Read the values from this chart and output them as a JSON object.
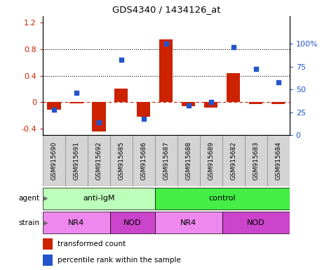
{
  "title": "GDS4340 / 1434126_at",
  "samples": [
    "GSM915690",
    "GSM915691",
    "GSM915692",
    "GSM915685",
    "GSM915686",
    "GSM915687",
    "GSM915688",
    "GSM915689",
    "GSM915682",
    "GSM915683",
    "GSM915684"
  ],
  "bar_values": [
    -0.12,
    -0.02,
    -0.45,
    0.2,
    -0.22,
    0.95,
    -0.06,
    -0.08,
    0.44,
    -0.03,
    -0.03
  ],
  "dot_values": [
    28,
    46,
    14,
    82,
    18,
    100,
    32,
    36,
    96,
    72,
    58
  ],
  "bar_color": "#cc2200",
  "dot_color": "#2255cc",
  "ylim_left": [
    -0.5,
    1.3
  ],
  "ylim_right": [
    0,
    130
  ],
  "yticks_left": [
    -0.4,
    0.0,
    0.4,
    0.8,
    1.2
  ],
  "ytick_labels_left": [
    "-0.4",
    "0",
    "0.4",
    "0.8",
    "1.2"
  ],
  "yticks_right": [
    0,
    25,
    50,
    75,
    100
  ],
  "ytick_labels_right": [
    "0",
    "25",
    "50",
    "75",
    "100%"
  ],
  "agent_groups": [
    {
      "label": "anti-IgM",
      "start": 0,
      "end": 5,
      "color": "#bbffbb"
    },
    {
      "label": "control",
      "start": 5,
      "end": 11,
      "color": "#44ee44"
    }
  ],
  "strain_groups": [
    {
      "label": "NR4",
      "start": 0,
      "end": 3,
      "color": "#ee88ee"
    },
    {
      "label": "NOD",
      "start": 3,
      "end": 5,
      "color": "#cc44cc"
    },
    {
      "label": "NR4",
      "start": 5,
      "end": 8,
      "color": "#ee88ee"
    },
    {
      "label": "NOD",
      "start": 8,
      "end": 11,
      "color": "#cc44cc"
    }
  ],
  "legend_bar_label": "transformed count",
  "legend_dot_label": "percentile rank within the sample",
  "sample_bg_color": "#cccccc",
  "plot_bg": "#ffffff"
}
